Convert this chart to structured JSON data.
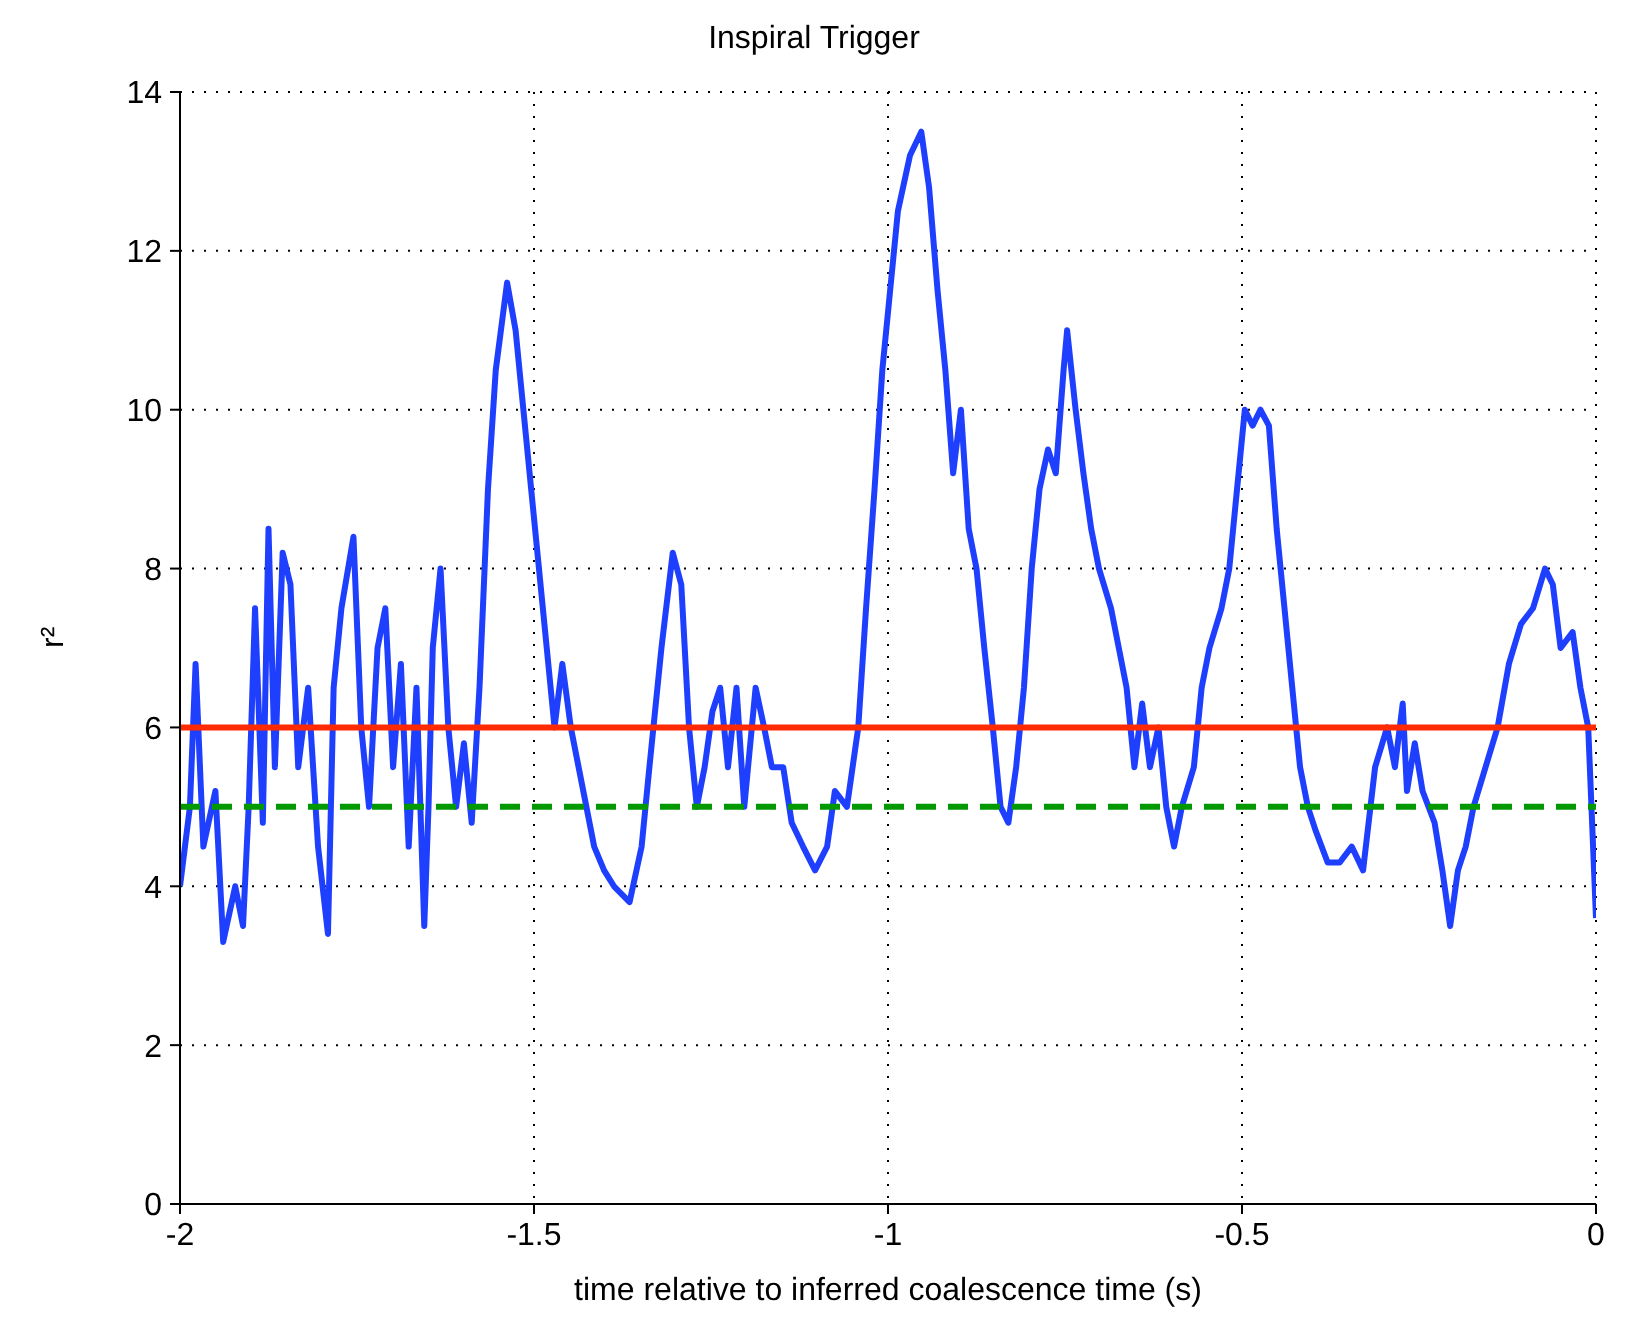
{
  "chart_data": {
    "type": "line",
    "title": "Inspiral Trigger",
    "xlabel": "time relative to inferred coalescence time (s)",
    "ylabel": "r²",
    "xlim": [
      -2,
      0
    ],
    "xticks": [
      -2,
      -1.5,
      -1,
      -0.5,
      0
    ],
    "ylim": [
      0,
      14
    ],
    "yticks": [
      0,
      2,
      4,
      6,
      8,
      10,
      12,
      14
    ],
    "grid": true,
    "marker": "none",
    "line_style": "solid",
    "series": [
      {
        "color": "#1f3fff",
        "x": [
          -2.0,
          -1.986,
          -1.978,
          -1.967,
          -1.95,
          -1.939,
          -1.922,
          -1.911,
          -1.903,
          -1.894,
          -1.883,
          -1.875,
          -1.866,
          -1.855,
          -1.844,
          -1.833,
          -1.819,
          -1.805,
          -1.791,
          -1.783,
          -1.772,
          -1.755,
          -1.744,
          -1.733,
          -1.721,
          -1.71,
          -1.699,
          -1.688,
          -1.677,
          -1.666,
          -1.655,
          -1.649,
          -1.643,
          -1.632,
          -1.621,
          -1.61,
          -1.599,
          -1.588,
          -1.577,
          -1.565,
          -1.554,
          -1.538,
          -1.526,
          -1.515,
          -1.504,
          -1.493,
          -1.482,
          -1.471,
          -1.46,
          -1.448,
          -1.437,
          -1.426,
          -1.415,
          -1.401,
          -1.387,
          -1.365,
          -1.348,
          -1.337,
          -1.32,
          -1.304,
          -1.292,
          -1.281,
          -1.27,
          -1.259,
          -1.248,
          -1.237,
          -1.226,
          -1.214,
          -1.203,
          -1.187,
          -1.175,
          -1.164,
          -1.148,
          -1.136,
          -1.12,
          -1.103,
          -1.086,
          -1.075,
          -1.058,
          -1.042,
          -1.031,
          -1.019,
          -1.008,
          -0.997,
          -0.986,
          -0.969,
          -0.953,
          -0.942,
          -0.93,
          -0.919,
          -0.908,
          -0.897,
          -0.886,
          -0.875,
          -0.864,
          -0.852,
          -0.841,
          -0.83,
          -0.819,
          -0.808,
          -0.797,
          -0.786,
          -0.774,
          -0.763,
          -0.752,
          -0.747,
          -0.735,
          -0.724,
          -0.713,
          -0.702,
          -0.685,
          -0.674,
          -0.663,
          -0.652,
          -0.641,
          -0.63,
          -0.618,
          -0.607,
          -0.596,
          -0.585,
          -0.568,
          -0.557,
          -0.546,
          -0.529,
          -0.518,
          -0.507,
          -0.496,
          -0.485,
          -0.474,
          -0.462,
          -0.451,
          -0.44,
          -0.429,
          -0.418,
          -0.407,
          -0.396,
          -0.379,
          -0.362,
          -0.345,
          -0.329,
          -0.312,
          -0.295,
          -0.284,
          -0.273,
          -0.267,
          -0.256,
          -0.245,
          -0.228,
          -0.217,
          -0.206,
          -0.195,
          -0.184,
          -0.173,
          -0.156,
          -0.139,
          -0.123,
          -0.106,
          -0.089,
          -0.072,
          -0.061,
          -0.05,
          -0.033,
          -0.022,
          -0.011,
          0.0
        ],
        "values": [
          4.0,
          5.0,
          6.8,
          4.5,
          5.2,
          3.3,
          4.0,
          3.5,
          5.0,
          7.5,
          4.8,
          8.5,
          5.5,
          8.2,
          7.8,
          5.5,
          6.5,
          4.5,
          3.4,
          6.5,
          7.5,
          8.4,
          6.0,
          5.0,
          7.0,
          7.5,
          5.5,
          6.8,
          4.5,
          6.5,
          3.5,
          5.0,
          7.0,
          8.0,
          6.0,
          5.0,
          5.8,
          4.8,
          6.5,
          9.0,
          10.5,
          11.6,
          11.0,
          10.0,
          9.0,
          8.0,
          7.0,
          6.0,
          6.8,
          6.0,
          5.5,
          5.0,
          4.5,
          4.2,
          4.0,
          3.8,
          4.5,
          5.5,
          7.0,
          8.2,
          7.8,
          6.0,
          5.0,
          5.5,
          6.2,
          6.5,
          5.5,
          6.5,
          5.0,
          6.5,
          6.0,
          5.5,
          5.5,
          4.8,
          4.5,
          4.2,
          4.5,
          5.2,
          5.0,
          6.0,
          7.5,
          9.0,
          10.5,
          11.5,
          12.5,
          13.2,
          13.5,
          12.8,
          11.5,
          10.5,
          9.2,
          10.0,
          8.5,
          8.0,
          7.0,
          6.0,
          5.0,
          4.8,
          5.5,
          6.5,
          8.0,
          9.0,
          9.5,
          9.2,
          10.5,
          11.0,
          10.0,
          9.2,
          8.5,
          8.0,
          7.5,
          7.0,
          6.5,
          5.5,
          6.3,
          5.5,
          6.0,
          5.0,
          4.5,
          5.0,
          5.5,
          6.5,
          7.0,
          7.5,
          8.0,
          9.0,
          10.0,
          9.8,
          10.0,
          9.8,
          8.5,
          7.5,
          6.5,
          5.5,
          5.0,
          4.7,
          4.3,
          4.3,
          4.5,
          4.2,
          5.5,
          6.0,
          5.5,
          6.3,
          5.2,
          5.8,
          5.2,
          4.8,
          4.2,
          3.5,
          4.2,
          4.5,
          5.0,
          5.5,
          6.0,
          6.8,
          7.3,
          7.5,
          8.0,
          7.8,
          7.0,
          7.2,
          6.5,
          6.0,
          3.6
        ]
      }
    ],
    "ref_lines": [
      {
        "axis": "y",
        "value": 6,
        "label": null,
        "color": "#ff2a00",
        "line_style": "solid"
      },
      {
        "axis": "y",
        "value": 5,
        "label": null,
        "color": "#009900",
        "line_style": "dashed"
      }
    ]
  }
}
